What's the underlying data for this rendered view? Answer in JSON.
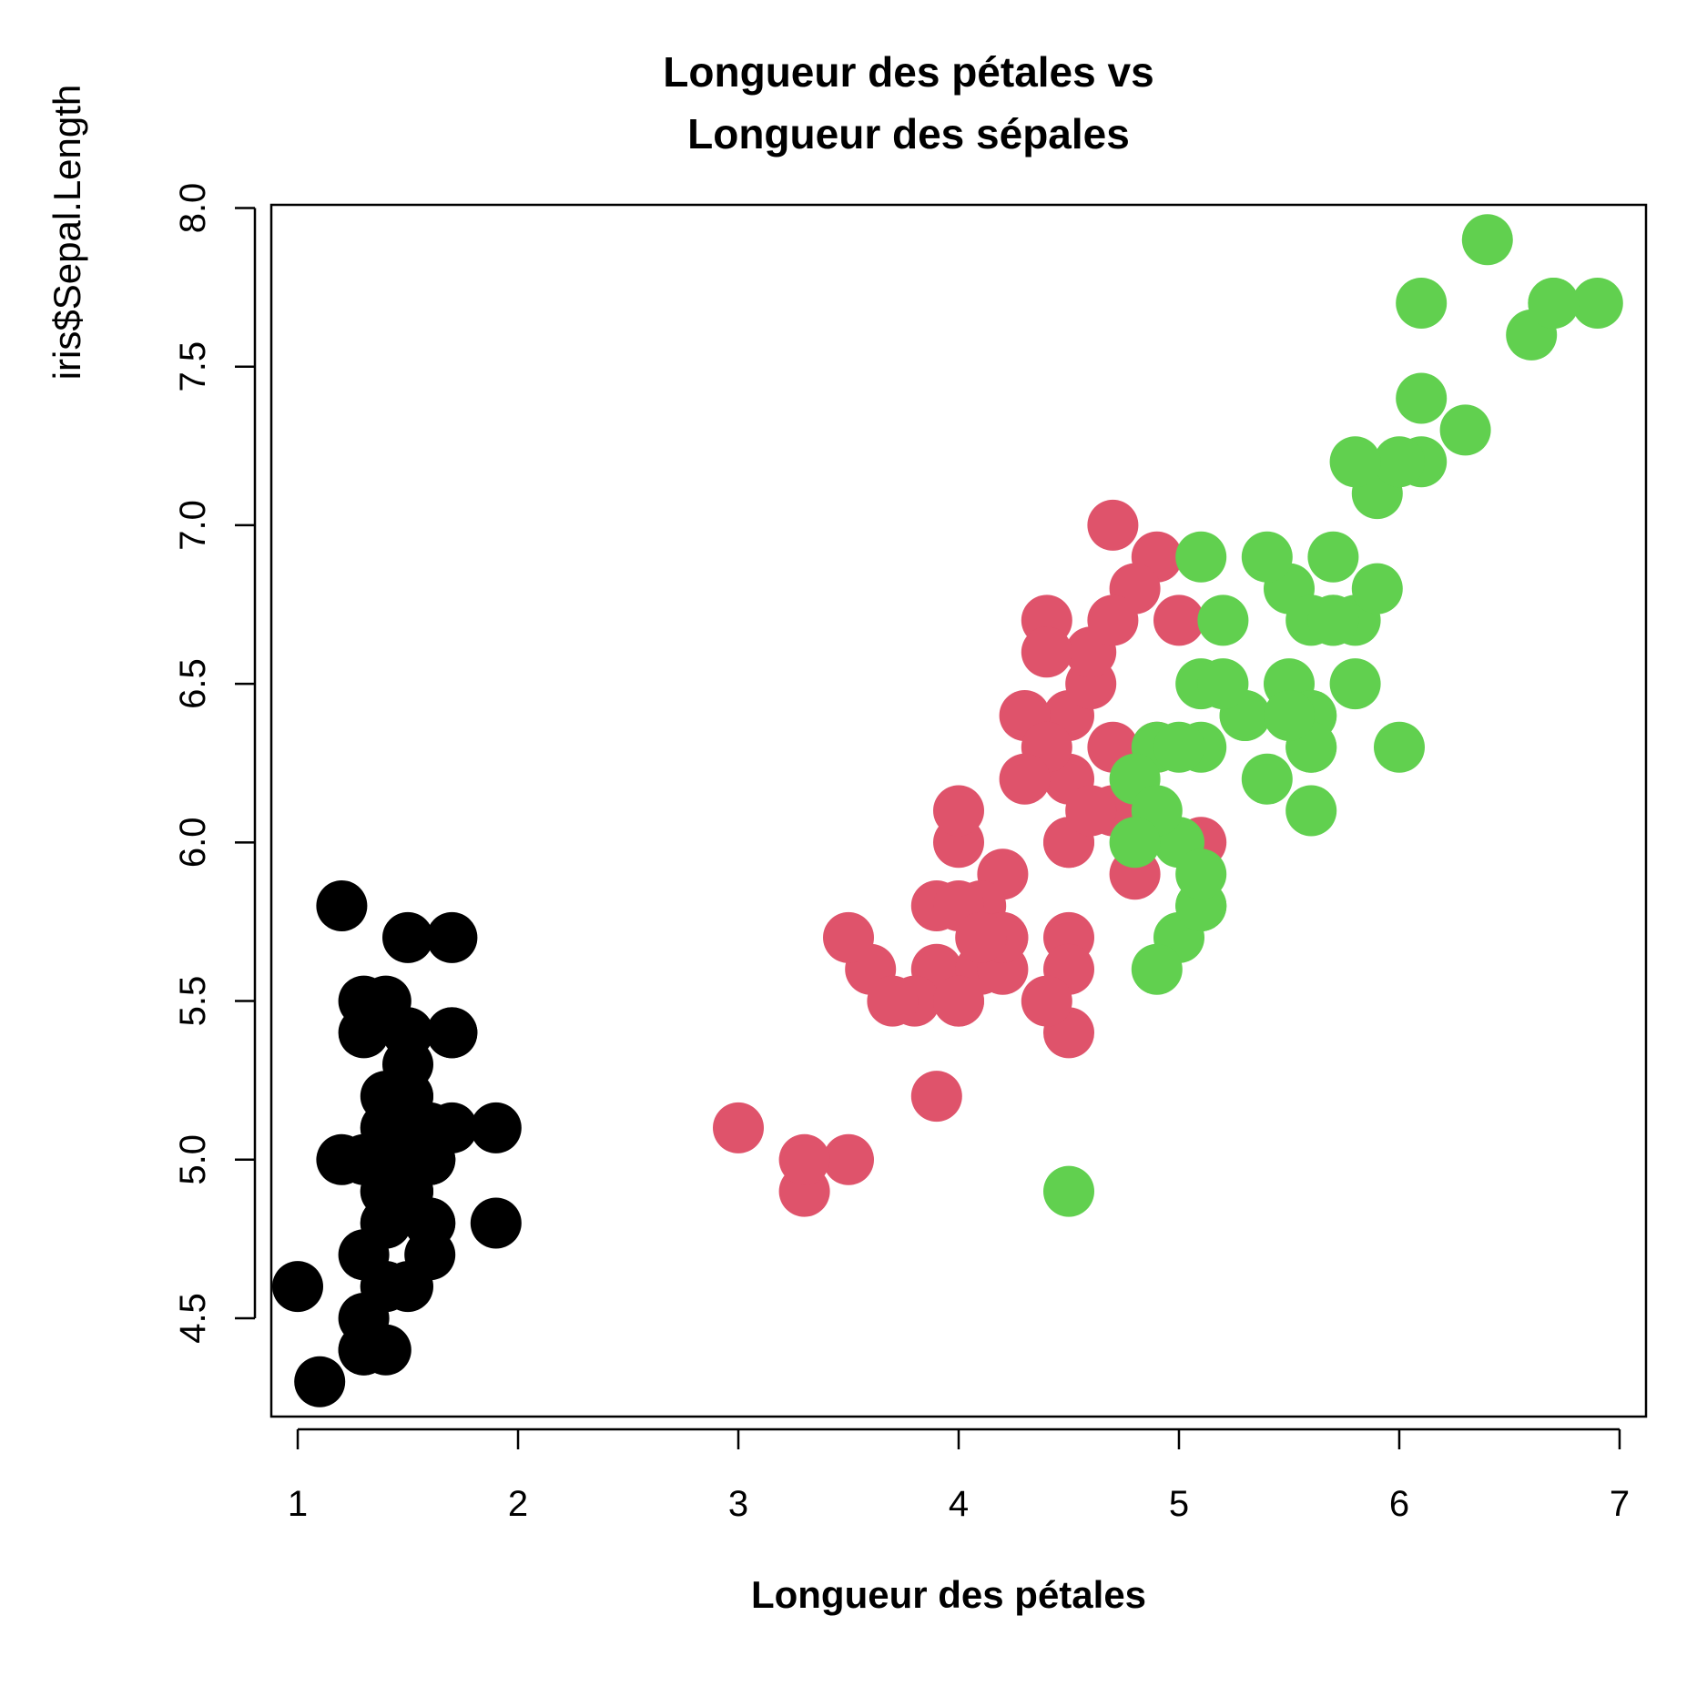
{
  "chart_data": {
    "type": "scatter",
    "title_lines": [
      "Longueur des pétales vs",
      "Longueur des sépales"
    ],
    "xlabel": "Longueur des pétales",
    "ylabel": "iris$Sepal.Length",
    "xlim": [
      0.88,
      7.12
    ],
    "ylim": [
      4.19,
      8.01
    ],
    "xticks": [
      1,
      2,
      3,
      4,
      5,
      6,
      7
    ],
    "xtick_labels": [
      "1",
      "2",
      "3",
      "4",
      "5",
      "6",
      "7"
    ],
    "yticks": [
      4.5,
      5.0,
      5.5,
      6.0,
      6.5,
      7.0,
      7.5,
      8.0
    ],
    "ytick_labels": [
      "4.5",
      "5.0",
      "5.5",
      "6.0",
      "6.5",
      "7.0",
      "7.5",
      "8.0"
    ],
    "grid": false,
    "series": [
      {
        "color": "#000000",
        "points": [
          [
            1.4,
            5.1
          ],
          [
            1.4,
            4.9
          ],
          [
            1.3,
            4.7
          ],
          [
            1.5,
            4.6
          ],
          [
            1.4,
            5.0
          ],
          [
            1.7,
            5.4
          ],
          [
            1.4,
            4.6
          ],
          [
            1.5,
            5.0
          ],
          [
            1.4,
            4.4
          ],
          [
            1.5,
            4.9
          ],
          [
            1.5,
            5.4
          ],
          [
            1.6,
            4.8
          ],
          [
            1.4,
            4.8
          ],
          [
            1.1,
            4.3
          ],
          [
            1.2,
            5.8
          ],
          [
            1.5,
            5.7
          ],
          [
            1.3,
            5.4
          ],
          [
            1.4,
            5.1
          ],
          [
            1.7,
            5.7
          ],
          [
            1.5,
            5.1
          ],
          [
            1.7,
            5.4
          ],
          [
            1.5,
            5.1
          ],
          [
            1.0,
            4.6
          ],
          [
            1.7,
            5.1
          ],
          [
            1.9,
            4.8
          ],
          [
            1.6,
            5.0
          ],
          [
            1.6,
            5.0
          ],
          [
            1.5,
            5.2
          ],
          [
            1.4,
            5.2
          ],
          [
            1.6,
            4.7
          ],
          [
            1.6,
            4.8
          ],
          [
            1.5,
            5.4
          ],
          [
            1.5,
            5.2
          ],
          [
            1.4,
            5.5
          ],
          [
            1.5,
            4.9
          ],
          [
            1.2,
            5.0
          ],
          [
            1.3,
            5.5
          ],
          [
            1.4,
            4.9
          ],
          [
            1.3,
            4.4
          ],
          [
            1.5,
            5.1
          ],
          [
            1.3,
            5.0
          ],
          [
            1.3,
            4.5
          ],
          [
            1.3,
            4.4
          ],
          [
            1.6,
            5.0
          ],
          [
            1.9,
            5.1
          ],
          [
            1.4,
            4.8
          ],
          [
            1.6,
            5.1
          ],
          [
            1.4,
            4.6
          ],
          [
            1.5,
            5.3
          ],
          [
            1.4,
            5.0
          ]
        ]
      },
      {
        "color": "#DF536B",
        "points": [
          [
            4.7,
            7.0
          ],
          [
            4.5,
            6.4
          ],
          [
            4.9,
            6.9
          ],
          [
            4.0,
            5.5
          ],
          [
            4.6,
            6.5
          ],
          [
            4.5,
            5.7
          ],
          [
            4.7,
            6.3
          ],
          [
            3.3,
            4.9
          ],
          [
            4.6,
            6.6
          ],
          [
            3.9,
            5.2
          ],
          [
            3.5,
            5.0
          ],
          [
            4.2,
            5.9
          ],
          [
            4.0,
            6.0
          ],
          [
            4.7,
            6.1
          ],
          [
            3.6,
            5.6
          ],
          [
            4.4,
            6.7
          ],
          [
            4.5,
            5.6
          ],
          [
            4.1,
            5.8
          ],
          [
            4.5,
            6.2
          ],
          [
            3.9,
            5.6
          ],
          [
            4.8,
            5.9
          ],
          [
            4.0,
            6.1
          ],
          [
            4.9,
            6.3
          ],
          [
            4.7,
            6.1
          ],
          [
            4.3,
            6.4
          ],
          [
            4.4,
            6.6
          ],
          [
            4.8,
            6.8
          ],
          [
            5.0,
            6.7
          ],
          [
            4.5,
            6.0
          ],
          [
            3.5,
            5.7
          ],
          [
            3.8,
            5.5
          ],
          [
            3.7,
            5.5
          ],
          [
            3.9,
            5.8
          ],
          [
            5.1,
            6.0
          ],
          [
            4.5,
            5.4
          ],
          [
            4.5,
            6.0
          ],
          [
            4.7,
            6.7
          ],
          [
            4.4,
            6.3
          ],
          [
            4.1,
            5.6
          ],
          [
            4.0,
            5.5
          ],
          [
            4.4,
            5.5
          ],
          [
            4.6,
            6.1
          ],
          [
            4.0,
            5.8
          ],
          [
            3.3,
            5.0
          ],
          [
            4.2,
            5.6
          ],
          [
            4.2,
            5.7
          ],
          [
            4.2,
            5.7
          ],
          [
            4.3,
            6.2
          ],
          [
            3.0,
            5.1
          ],
          [
            4.1,
            5.7
          ]
        ]
      },
      {
        "color": "#61D04F",
        "points": [
          [
            6.0,
            6.3
          ],
          [
            5.1,
            5.8
          ],
          [
            5.9,
            7.1
          ],
          [
            5.6,
            6.3
          ],
          [
            5.8,
            6.5
          ],
          [
            6.6,
            7.6
          ],
          [
            4.5,
            4.9
          ],
          [
            6.3,
            7.3
          ],
          [
            5.8,
            6.7
          ],
          [
            6.1,
            7.2
          ],
          [
            5.1,
            6.5
          ],
          [
            5.3,
            6.4
          ],
          [
            5.5,
            6.8
          ],
          [
            5.0,
            5.7
          ],
          [
            5.1,
            5.8
          ],
          [
            5.3,
            6.4
          ],
          [
            5.5,
            6.5
          ],
          [
            6.7,
            7.7
          ],
          [
            6.9,
            7.7
          ],
          [
            5.0,
            6.0
          ],
          [
            5.7,
            6.9
          ],
          [
            4.9,
            5.6
          ],
          [
            6.7,
            7.7
          ],
          [
            4.9,
            6.3
          ],
          [
            5.7,
            6.7
          ],
          [
            6.0,
            7.2
          ],
          [
            4.8,
            6.2
          ],
          [
            4.9,
            6.1
          ],
          [
            5.6,
            6.4
          ],
          [
            5.8,
            7.2
          ],
          [
            6.1,
            7.4
          ],
          [
            6.4,
            7.9
          ],
          [
            5.6,
            6.4
          ],
          [
            5.1,
            6.3
          ],
          [
            5.6,
            6.1
          ],
          [
            6.1,
            7.7
          ],
          [
            5.6,
            6.3
          ],
          [
            5.5,
            6.4
          ],
          [
            4.8,
            6.0
          ],
          [
            5.4,
            6.9
          ],
          [
            5.6,
            6.7
          ],
          [
            5.1,
            6.9
          ],
          [
            5.1,
            5.8
          ],
          [
            5.9,
            6.8
          ],
          [
            5.7,
            6.7
          ],
          [
            5.2,
            6.7
          ],
          [
            5.0,
            6.3
          ],
          [
            5.2,
            6.5
          ],
          [
            5.4,
            6.2
          ],
          [
            5.1,
            5.9
          ]
        ]
      }
    ]
  }
}
